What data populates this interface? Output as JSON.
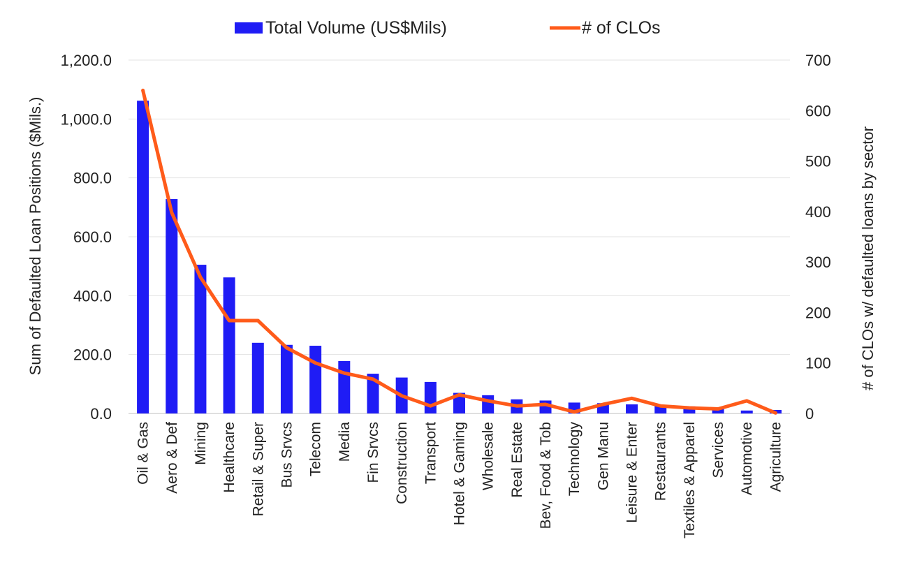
{
  "chart_data": {
    "type": "bar",
    "combo": "bar + line (secondary axis)",
    "categories": [
      "Oil & Gas",
      "Aero & Def",
      "Mining",
      "Healthcare",
      "Retail & Super",
      "Bus Srvcs",
      "Telecom",
      "Media",
      "Fin Srvcs",
      "Construction",
      "Transport",
      "Hotel & Gaming",
      "Wholesale",
      "Real Estate",
      "Bev, Food & Tob",
      "Technology",
      "Gen Manu",
      "Leisure & Enter",
      "Restaurants",
      "Textiles & Apparel",
      "Services",
      "Automotive",
      "Agriculture"
    ],
    "series": [
      {
        "name": "Total Volume (US$Mils)",
        "type": "bar",
        "axis": "left",
        "color": "#1f1cf5",
        "values": [
          1062,
          728,
          505,
          462,
          240,
          233,
          230,
          178,
          135,
          122,
          107,
          70,
          62,
          48,
          44,
          37,
          35,
          31,
          26,
          24,
          17,
          10,
          12
        ]
      },
      {
        "name": "# of CLOs",
        "type": "line",
        "axis": "right",
        "color": "#ff5b1a",
        "values": [
          640,
          398,
          270,
          184,
          184,
          130,
          100,
          80,
          68,
          35,
          15,
          37,
          25,
          15,
          18,
          3,
          18,
          30,
          15,
          11,
          9,
          25,
          1
        ]
      }
    ],
    "ylabel": "Sum of Defaulted Loan Positions ($Mils.)",
    "ylabel_right": "# of CLOs w/ defaulted loans by sector",
    "ylim": [
      0,
      1200
    ],
    "ylim_right": [
      0,
      700
    ],
    "yticks": [
      "0.0",
      "200.0",
      "400.0",
      "600.0",
      "800.0",
      "1,000.0",
      "1,200.0"
    ],
    "yticks_right": [
      "0",
      "100",
      "200",
      "300",
      "400",
      "500",
      "600",
      "700"
    ],
    "grid": true,
    "legend": "top-center"
  }
}
